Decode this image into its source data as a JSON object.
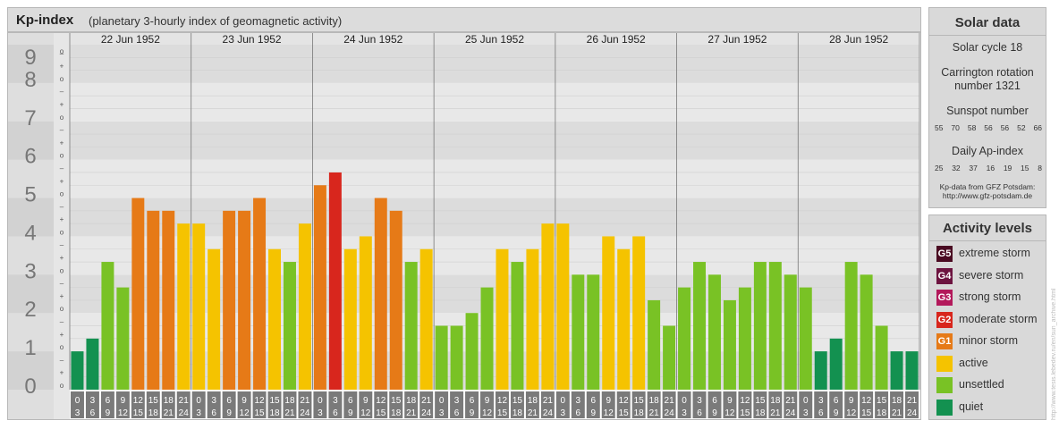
{
  "header": {
    "title": "Kp-index",
    "subtitle": "(planetary 3-hourly index of geomagnetic activity)"
  },
  "chart_data": {
    "type": "bar",
    "title": "Kp-index",
    "subtitle": "(planetary 3-hourly index of geomagnetic activity)",
    "ylim": [
      0,
      9
    ],
    "y_ticks": [
      "0",
      "1",
      "2",
      "3",
      "4",
      "5",
      "6",
      "7",
      "8",
      "9"
    ],
    "y_minor_ticks": [
      "o",
      "+",
      "–"
    ],
    "days": [
      "22 Jun 1952",
      "23 Jun 1952",
      "24 Jun 1952",
      "25 Jun 1952",
      "26 Jun 1952",
      "27 Jun 1952",
      "28 Jun 1952"
    ],
    "hour_ticks_top": [
      "0",
      "3",
      "6",
      "9",
      "12",
      "15",
      "18",
      "21"
    ],
    "hour_ticks_bottom": [
      "3",
      "6",
      "9",
      "12",
      "15",
      "18",
      "21",
      "24"
    ],
    "values": [
      1.0,
      1.333,
      3.333,
      2.667,
      5.0,
      4.667,
      4.667,
      4.333,
      4.333,
      3.667,
      4.667,
      4.667,
      5.0,
      3.667,
      3.333,
      4.333,
      5.333,
      5.667,
      3.667,
      4.0,
      5.0,
      4.667,
      3.333,
      3.667,
      1.667,
      1.667,
      2.0,
      2.667,
      3.667,
      3.333,
      3.667,
      4.333,
      4.333,
      3.0,
      3.0,
      4.0,
      3.667,
      4.0,
      2.333,
      1.667,
      2.667,
      3.333,
      3.0,
      2.333,
      2.667,
      3.333,
      3.333,
      3.0,
      2.667,
      1.0,
      1.333,
      3.333,
      3.0,
      1.667,
      1.0,
      1.0
    ],
    "colors": {
      "quiet": "#139150",
      "unsettled": "#79c225",
      "active": "#f5c300",
      "minor_storm": "#e67a17",
      "moderate_storm": "#d8261d",
      "strong_storm": "#b3195b",
      "severe_storm": "#6d1440",
      "extreme_storm": "#4a0b22"
    }
  },
  "solar": {
    "title": "Solar data",
    "cycle": "Solar cycle 18",
    "carrington_1": "Carrington rotation",
    "carrington_2": "number 1321",
    "sunspot_title": "Sunspot number",
    "sunspot_values": [
      "55",
      "70",
      "58",
      "56",
      "56",
      "52",
      "66"
    ],
    "ap_title": "Daily Ap-index",
    "ap_values": [
      "25",
      "32",
      "37",
      "16",
      "19",
      "15",
      "8"
    ],
    "source_1": "Kp-data from GFZ Potsdam:",
    "source_2": "http://www.gfz-potsdam.de"
  },
  "activity": {
    "title": "Activity levels",
    "items": [
      {
        "badge": "G5",
        "label": "extreme storm",
        "color": "#4a0b22"
      },
      {
        "badge": "G4",
        "label": "severe storm",
        "color": "#6d1440"
      },
      {
        "badge": "G3",
        "label": "strong storm",
        "color": "#b3195b"
      },
      {
        "badge": "G2",
        "label": "moderate storm",
        "color": "#d8261d"
      },
      {
        "badge": "G1",
        "label": "minor storm",
        "color": "#e67a17"
      },
      {
        "badge": "",
        "label": "active",
        "color": "#f5c300"
      },
      {
        "badge": "",
        "label": "unsettled",
        "color": "#79c225"
      },
      {
        "badge": "",
        "label": "quiet",
        "color": "#139150"
      }
    ]
  },
  "watermark": "http://www.tesis.lebedev.ru/en/sun_archive.html"
}
